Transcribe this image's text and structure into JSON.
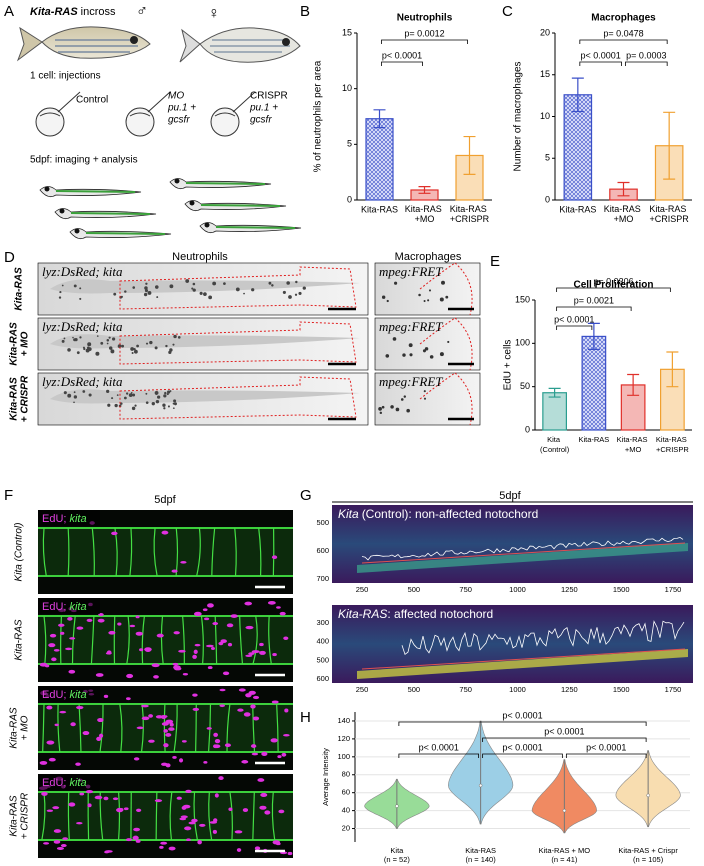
{
  "panel_a": {
    "letter": "A",
    "cross_gene": "Kita-RAS",
    "cross": "incross",
    "male": "♂",
    "female": "♀",
    "injections": "1 cell: injections",
    "control": "Control",
    "mo": "MO",
    "mo_genes": [
      "pu.1 +",
      "gcsfr"
    ],
    "crispr": "CRISPR",
    "crispr_genes": [
      "pu.1 +",
      "gcsfr"
    ],
    "imaging": "5dpf: imaging + analysis"
  },
  "panel_d": {
    "letter": "D",
    "neutrophils": "Neutrophils",
    "macrophages": "Macrophages",
    "neutro_label": "lyz:DsRed; kita",
    "macro_label": "mpeg:FRET",
    "rows": [
      [
        "Kita-RAS"
      ],
      [
        "Kita-RAS",
        "+ MO"
      ],
      [
        "Kita-RAS",
        "+ CRISPR"
      ]
    ]
  },
  "panel_f": {
    "letter": "F",
    "stage": "5dpf",
    "edu": "EdU;",
    "kita": "kita",
    "rows": [
      [
        "Kita (Control)"
      ],
      [
        "Kita-RAS"
      ],
      [
        "Kita-RAS",
        "+ MO"
      ],
      [
        "Kita-RAS",
        "+ CRISPR"
      ]
    ]
  },
  "panel_g": {
    "letter": "G",
    "stage": "5dpf",
    "xticks": [
      "250",
      "500",
      "750",
      "1000",
      "1250",
      "1500",
      "1750"
    ],
    "plots": [
      {
        "gene": "Kita",
        "title": "(Control): non-affected notochord",
        "yticks": [
          "500",
          "600",
          "700"
        ]
      },
      {
        "gene": "Kita-RAS",
        "title": ": affected notochord",
        "yticks": [
          "300",
          "400",
          "500",
          "600"
        ]
      }
    ]
  },
  "chart_data": [
    {
      "letter": "B",
      "type": "bar",
      "title": "Neutrophils",
      "ylabel": "% of neutrophils per area",
      "categories": [
        "Kita-RAS",
        "Kita-RAS +MO",
        "Kita-RAS +CRISPR"
      ],
      "values": [
        7.3,
        0.9,
        4.0
      ],
      "errors": [
        0.8,
        0.3,
        1.7
      ],
      "colors": [
        "#3a4fc8",
        "#e0302a",
        "#f0a030"
      ],
      "hatched": [
        true,
        false,
        false
      ],
      "ylim": [
        0,
        15
      ],
      "yticks": [
        0,
        5,
        10,
        15
      ],
      "comparisons": [
        {
          "label": "p< 0.0001",
          "from": 0,
          "to": 1
        },
        {
          "label": "p= 0.0012",
          "from": 0,
          "to": 2
        }
      ]
    },
    {
      "letter": "C",
      "type": "bar",
      "title": "Macrophages",
      "ylabel": "Number of macrophages",
      "categories": [
        "Kita-RAS",
        "Kita-RAS +MO",
        "Kita-RAS +CRISPR"
      ],
      "values": [
        12.6,
        1.3,
        6.5
      ],
      "errors": [
        2.0,
        0.8,
        4.0
      ],
      "colors": [
        "#3a4fc8",
        "#e0302a",
        "#f0a030"
      ],
      "hatched": [
        true,
        false,
        false
      ],
      "ylim": [
        0,
        20
      ],
      "yticks": [
        0,
        5,
        10,
        15,
        20
      ],
      "comparisons": [
        {
          "label": "p< 0.0001",
          "from": 0,
          "to": 1
        },
        {
          "label": "p= 0.0003",
          "from": 1,
          "to": 2
        },
        {
          "label": "p= 0.0478",
          "from": 0,
          "to": 2
        }
      ]
    },
    {
      "letter": "E",
      "type": "bar",
      "title": "Cell Proliferation",
      "ylabel": "EdU + cells",
      "categories": [
        "Kita (Control)",
        "Kita-RAS",
        "Kita-RAS +MO",
        "Kita-RAS +CRISPR"
      ],
      "values": [
        43,
        108,
        52,
        70
      ],
      "errors": [
        5,
        15,
        12,
        20
      ],
      "colors": [
        "#2a9d8f",
        "#3a4fc8",
        "#e0302a",
        "#f0a030"
      ],
      "hatched": [
        false,
        true,
        false,
        false
      ],
      "ylim": [
        0,
        150
      ],
      "yticks": [
        0,
        50,
        100,
        150
      ],
      "comparisons": [
        {
          "label": "p< 0.0001",
          "from": 0,
          "to": 1
        },
        {
          "label": "p= 0.0021",
          "from": 0,
          "to": 2
        },
        {
          "label": "p= 0.0306",
          "from": 0,
          "to": 3
        }
      ]
    },
    {
      "letter": "H",
      "type": "violin",
      "ylabel": "Average Intensity",
      "categories": [
        "Kita",
        "Kita-RAS",
        "Kita-RAS + MO",
        "Kita-RAS + Crispr"
      ],
      "n_labels": [
        "(n = 52)",
        "(n = 140)",
        "(n = 41)",
        "(n = 105)"
      ],
      "values": [
        45,
        68,
        40,
        57
      ],
      "mins": [
        20,
        25,
        15,
        22
      ],
      "maxs": [
        75,
        140,
        97,
        107
      ],
      "colors": [
        "#98dc98",
        "#9ccfe6",
        "#f08a62",
        "#f8ddb0"
      ],
      "ylim": [
        5,
        150
      ],
      "yticks": [
        20,
        40,
        60,
        80,
        100,
        120,
        140
      ],
      "grid": true,
      "comparisons": [
        {
          "label": "p< 0.0001",
          "from": 0,
          "to": 1
        },
        {
          "label": "p< 0.0001",
          "from": 1,
          "to": 2
        },
        {
          "label": "p< 0.0001",
          "from": 2,
          "to": 3
        },
        {
          "label": "p< 0.0001",
          "from": 1,
          "to": 3
        },
        {
          "label": "p< 0.0001",
          "from": 0,
          "to": 3
        }
      ]
    }
  ]
}
